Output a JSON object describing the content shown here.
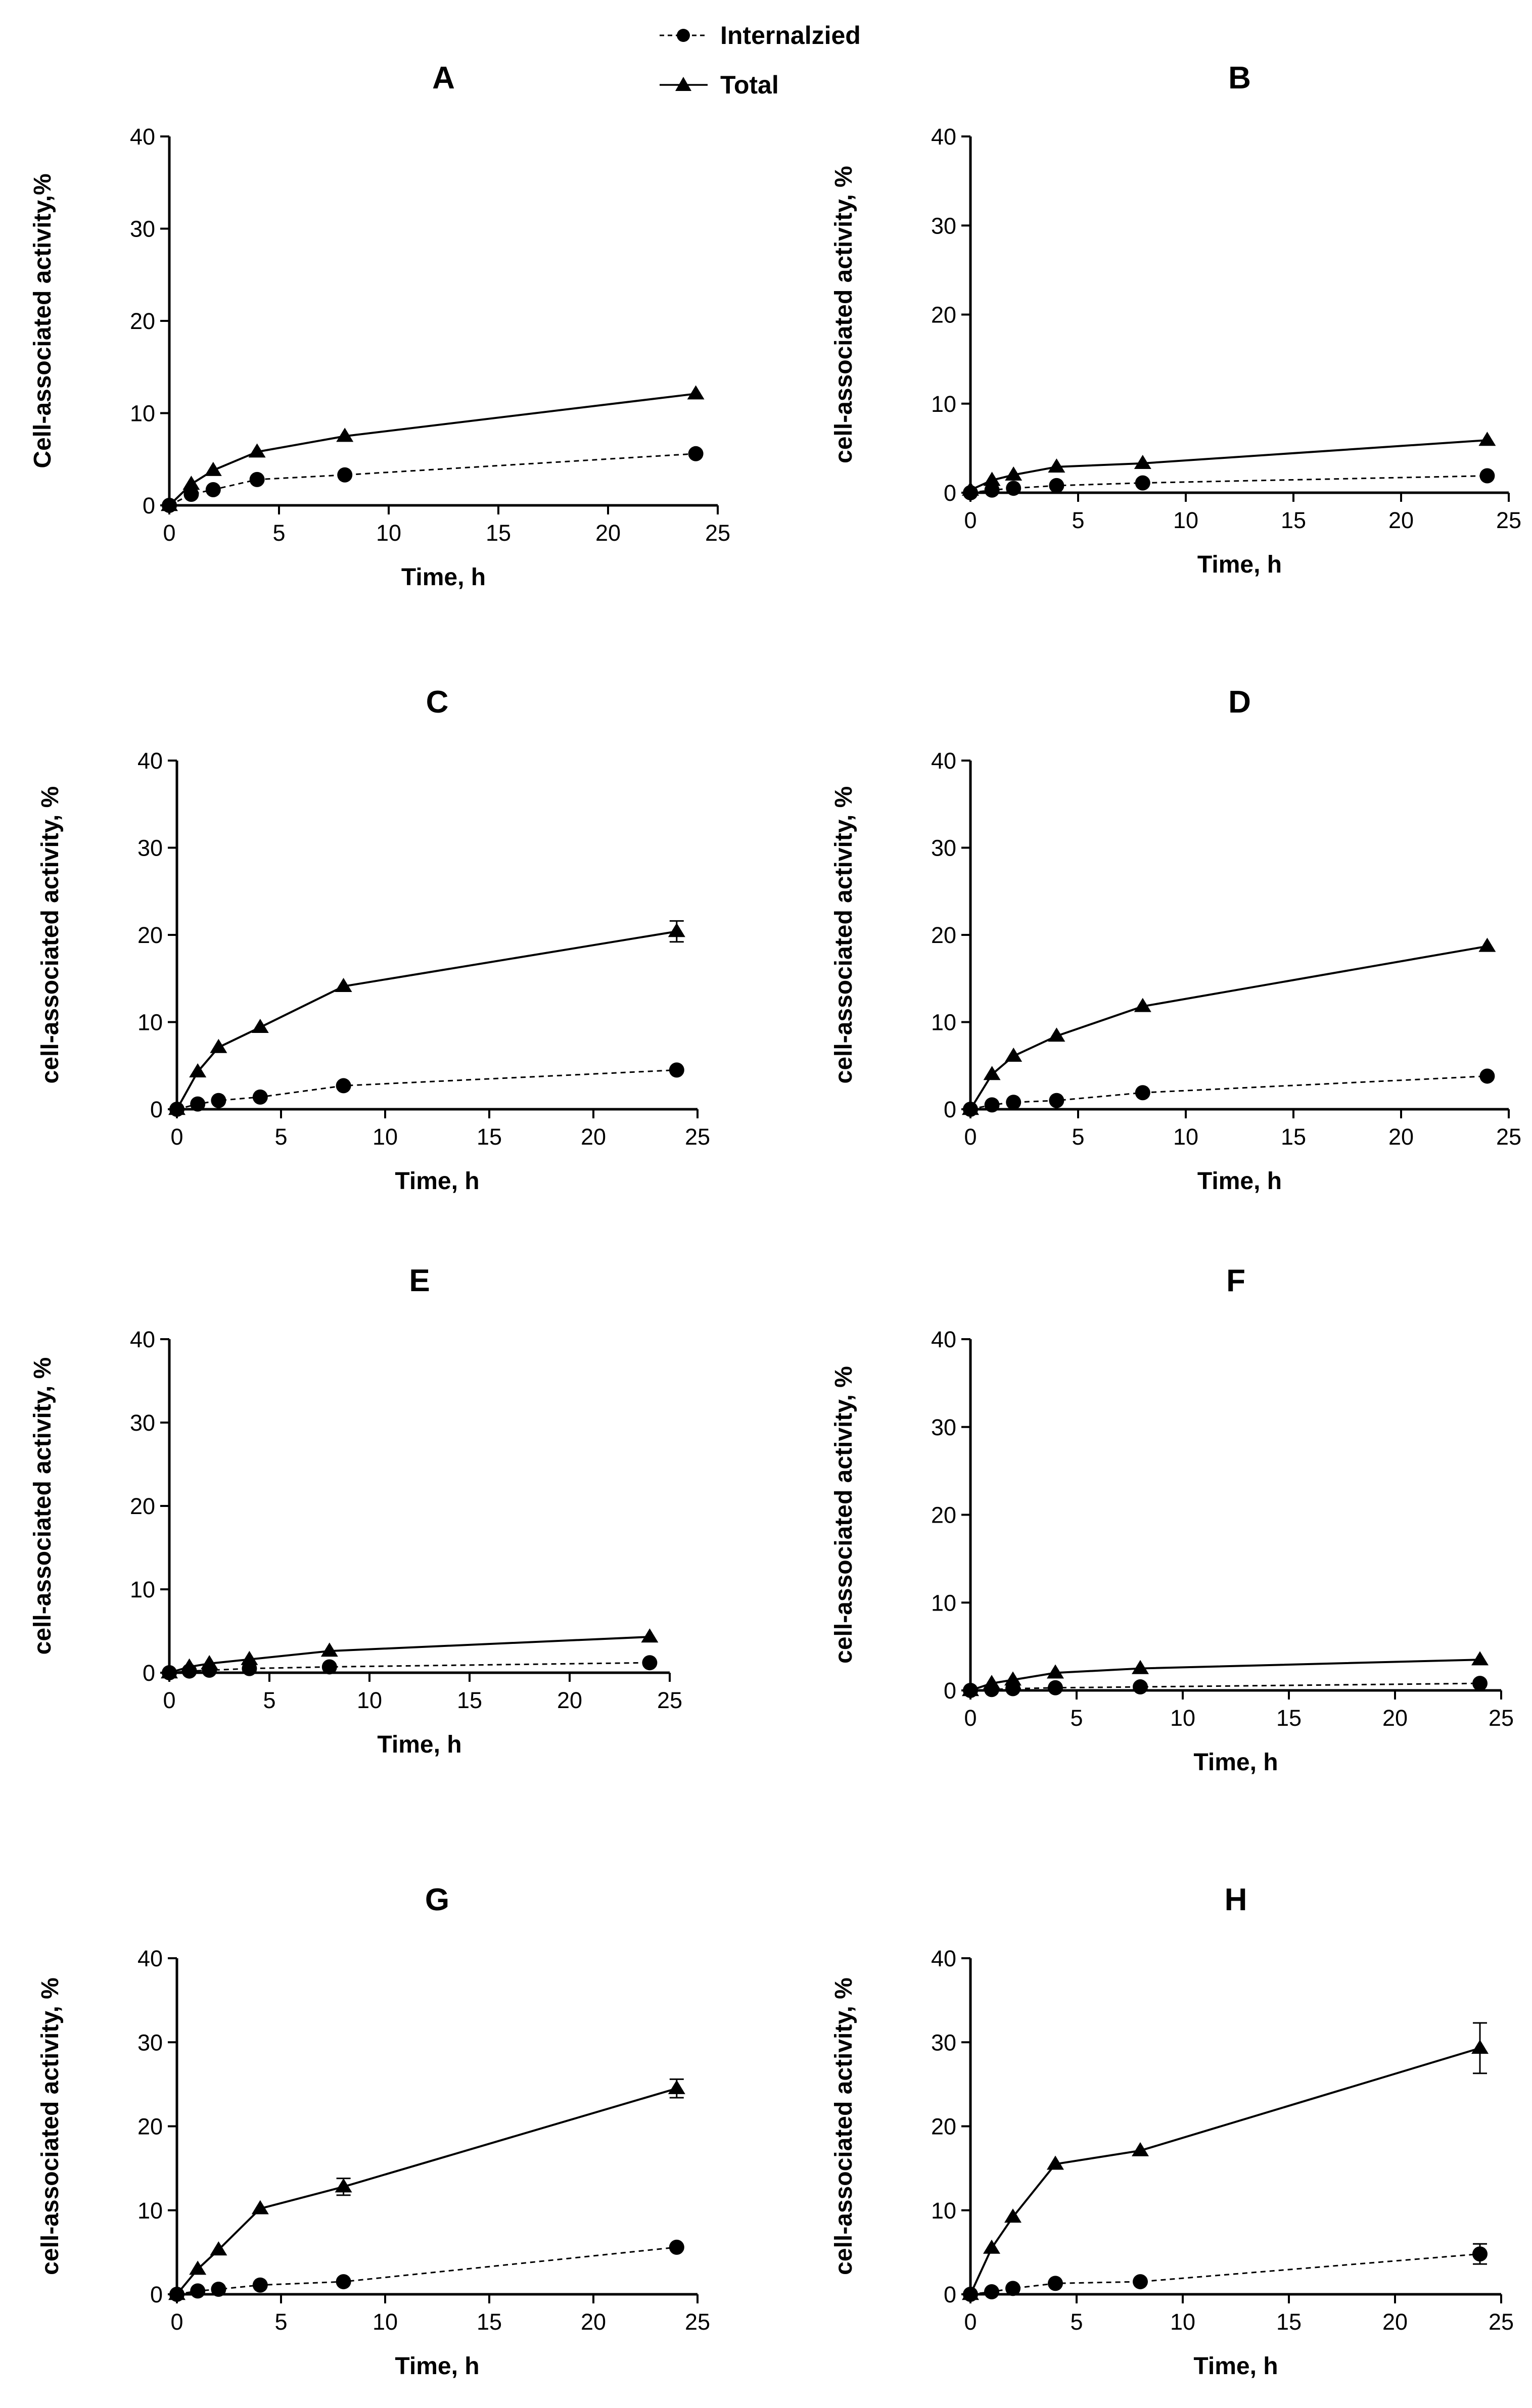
{
  "legend": {
    "items": [
      {
        "label": "Internalzied",
        "marker": "circle",
        "line": "dashed"
      },
      {
        "label": "Total",
        "marker": "triangle",
        "line": "solid"
      }
    ]
  },
  "colors": {
    "ink": "#000000",
    "background": "#ffffff"
  },
  "chart_data": [
    {
      "panel": "A",
      "type": "line",
      "title": "A",
      "xlabel": "Time, h",
      "ylabel": "Cell-associated activity,%",
      "xlim": [
        0,
        25
      ],
      "ylim": [
        0,
        40
      ],
      "xticks": [
        0,
        5,
        10,
        15,
        20,
        25
      ],
      "yticks": [
        0,
        10,
        20,
        30,
        40
      ],
      "x": [
        0,
        1,
        2,
        4,
        8,
        24
      ],
      "series": [
        {
          "name": "Internalzied",
          "values": [
            0,
            1.2,
            1.7,
            2.8,
            3.3,
            5.6
          ],
          "errors": [
            0,
            0,
            0,
            0,
            0,
            0
          ]
        },
        {
          "name": "Total",
          "values": [
            0,
            2.3,
            3.8,
            5.8,
            7.5,
            12.1
          ],
          "errors": [
            0,
            0,
            0,
            0,
            0,
            0
          ]
        }
      ]
    },
    {
      "panel": "B",
      "type": "line",
      "title": "B",
      "xlabel": "Time, h",
      "ylabel": "cell-associated activity, %",
      "xlim": [
        0,
        25
      ],
      "ylim": [
        0,
        40
      ],
      "xticks": [
        0,
        5,
        10,
        15,
        20,
        25
      ],
      "yticks": [
        0,
        10,
        20,
        30,
        40
      ],
      "x": [
        0,
        1,
        2,
        4,
        8,
        24
      ],
      "series": [
        {
          "name": "Internalzied",
          "values": [
            0,
            0.3,
            0.5,
            0.8,
            1.1,
            1.9
          ],
          "errors": [
            0,
            0,
            0,
            0,
            0,
            0
          ]
        },
        {
          "name": "Total",
          "values": [
            0.3,
            1.4,
            2.0,
            2.9,
            3.3,
            5.9
          ],
          "errors": [
            0,
            0,
            0,
            0,
            0,
            0
          ]
        }
      ]
    },
    {
      "panel": "C",
      "type": "line",
      "title": "C",
      "xlabel": "Time, h",
      "ylabel": "cell-associated activity, %",
      "xlim": [
        0,
        25
      ],
      "ylim": [
        0,
        40
      ],
      "xticks": [
        0,
        5,
        10,
        15,
        20,
        25
      ],
      "yticks": [
        0,
        10,
        20,
        30,
        40
      ],
      "x": [
        0,
        1,
        2,
        4,
        8,
        24
      ],
      "series": [
        {
          "name": "Internalzied",
          "values": [
            0,
            0.6,
            1.0,
            1.4,
            2.7,
            4.5
          ],
          "errors": [
            0,
            0,
            0,
            0,
            0,
            0
          ]
        },
        {
          "name": "Total",
          "values": [
            0,
            4.3,
            7.1,
            9.4,
            14.1,
            20.4
          ],
          "errors": [
            0,
            0,
            0,
            0,
            0,
            1.2
          ]
        }
      ]
    },
    {
      "panel": "D",
      "type": "line",
      "title": "D",
      "xlabel": "Time, h",
      "ylabel": "cell-associated activity, %",
      "xlim": [
        0,
        25
      ],
      "ylim": [
        0,
        40
      ],
      "xticks": [
        0,
        5,
        10,
        15,
        20,
        25
      ],
      "yticks": [
        0,
        10,
        20,
        30,
        40
      ],
      "x": [
        0,
        1,
        2,
        4,
        8,
        24
      ],
      "series": [
        {
          "name": "Internalzied",
          "values": [
            0,
            0.5,
            0.8,
            1.0,
            1.9,
            3.8
          ],
          "errors": [
            0,
            0,
            0,
            0,
            0,
            0
          ]
        },
        {
          "name": "Total",
          "values": [
            0,
            4.0,
            6.1,
            8.4,
            11.8,
            18.7
          ],
          "errors": [
            0,
            0,
            0,
            0,
            0,
            0
          ]
        }
      ]
    },
    {
      "panel": "E",
      "type": "line",
      "title": "E",
      "xlabel": "Time, h",
      "ylabel": "cell-associated activity, %",
      "xlim": [
        0,
        25
      ],
      "ylim": [
        0,
        40
      ],
      "xticks": [
        0,
        5,
        10,
        15,
        20,
        25
      ],
      "yticks": [
        0,
        10,
        20,
        30,
        40
      ],
      "x": [
        0,
        1,
        2,
        4,
        8,
        24
      ],
      "series": [
        {
          "name": "Internalzied",
          "values": [
            0,
            0.2,
            0.3,
            0.5,
            0.7,
            1.2
          ],
          "errors": [
            0,
            0,
            0,
            0,
            0,
            0
          ]
        },
        {
          "name": "Total",
          "values": [
            0,
            0.7,
            1.1,
            1.6,
            2.6,
            4.3
          ],
          "errors": [
            0,
            0,
            0,
            0,
            0,
            0
          ]
        }
      ]
    },
    {
      "panel": "F",
      "type": "line",
      "title": "F",
      "xlabel": "Time, h",
      "ylabel": "cell-associated activity, %",
      "xlim": [
        0,
        25
      ],
      "ylim": [
        0,
        40
      ],
      "xticks": [
        0,
        5,
        10,
        15,
        20,
        25
      ],
      "yticks": [
        0,
        10,
        20,
        30,
        40
      ],
      "x": [
        0,
        1,
        2,
        4,
        8,
        24
      ],
      "series": [
        {
          "name": "Internalzied",
          "values": [
            0,
            0.1,
            0.2,
            0.3,
            0.4,
            0.8
          ],
          "errors": [
            0,
            0,
            0,
            0,
            0,
            0
          ]
        },
        {
          "name": "Total",
          "values": [
            0,
            0.8,
            1.2,
            2.0,
            2.5,
            3.5
          ],
          "errors": [
            0,
            0,
            0,
            0,
            0,
            0
          ]
        }
      ]
    },
    {
      "panel": "G",
      "type": "line",
      "title": "G",
      "xlabel": "Time, h",
      "ylabel": "cell-associated activity, %",
      "xlim": [
        0,
        25
      ],
      "ylim": [
        0,
        40
      ],
      "xticks": [
        0,
        5,
        10,
        15,
        20,
        25
      ],
      "yticks": [
        0,
        10,
        20,
        30,
        40
      ],
      "x": [
        0,
        1,
        2,
        4,
        8,
        24
      ],
      "series": [
        {
          "name": "Internalzied",
          "values": [
            0,
            0.4,
            0.6,
            1.1,
            1.5,
            5.6
          ],
          "errors": [
            0,
            0,
            0,
            0,
            0,
            0
          ]
        },
        {
          "name": "Total",
          "values": [
            0,
            3.0,
            5.3,
            10.2,
            12.8,
            24.5
          ],
          "errors": [
            0,
            0,
            0,
            0,
            1.0,
            1.1
          ]
        }
      ]
    },
    {
      "panel": "H",
      "type": "line",
      "title": "H",
      "xlabel": "Time, h",
      "ylabel": "cell-associated activity, %",
      "xlim": [
        0,
        25
      ],
      "ylim": [
        0,
        40
      ],
      "xticks": [
        0,
        5,
        10,
        15,
        20,
        25
      ],
      "yticks": [
        0,
        10,
        20,
        30,
        40
      ],
      "x": [
        0,
        1,
        2,
        4,
        8,
        24
      ],
      "series": [
        {
          "name": "Internalzied",
          "values": [
            0,
            0.3,
            0.7,
            1.3,
            1.5,
            4.8
          ],
          "errors": [
            0,
            0,
            0,
            0,
            0,
            1.2
          ]
        },
        {
          "name": "Total",
          "values": [
            0,
            5.5,
            9.2,
            15.5,
            17.1,
            29.3
          ],
          "errors": [
            0,
            0,
            0,
            0,
            0,
            3.0
          ]
        }
      ]
    }
  ]
}
